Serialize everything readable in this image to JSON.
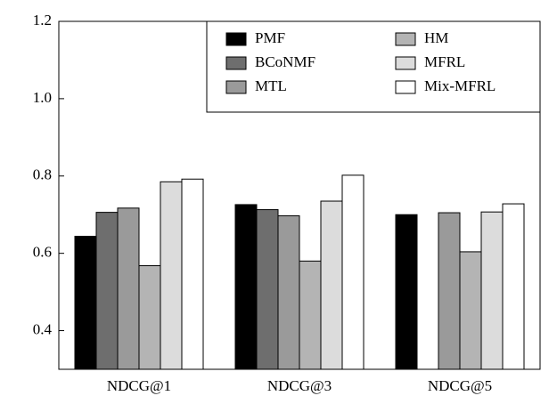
{
  "chart_data": {
    "type": "bar",
    "categories": [
      "NDCG@1",
      "NDCG@3",
      "NDCG@5"
    ],
    "series": [
      {
        "name": "PMF",
        "color": "#000000",
        "values": [
          0.644,
          0.726,
          0.7
        ]
      },
      {
        "name": "BCoNMF",
        "color": "#6e6e6e",
        "values": [
          0.706,
          0.713,
          null
        ]
      },
      {
        "name": "MTL",
        "color": "#9a9a9a",
        "values": [
          0.717,
          0.697,
          0.705
        ]
      },
      {
        "name": "HM",
        "color": "#b4b4b4",
        "values": [
          0.568,
          0.58,
          0.604
        ]
      },
      {
        "name": "MFRL",
        "color": "#dcdcdc",
        "values": [
          0.785,
          0.735,
          0.707
        ]
      },
      {
        "name": "Mix-MFRL",
        "color": "#ffffff",
        "values": [
          0.792,
          0.802,
          0.728
        ]
      }
    ],
    "ylim": [
      0.3,
      1.2
    ],
    "yticks": [
      0.4,
      0.6,
      0.8,
      {
        "value": 1,
        "label": "1.0"
      },
      1.2
    ],
    "legend": "upper right"
  }
}
